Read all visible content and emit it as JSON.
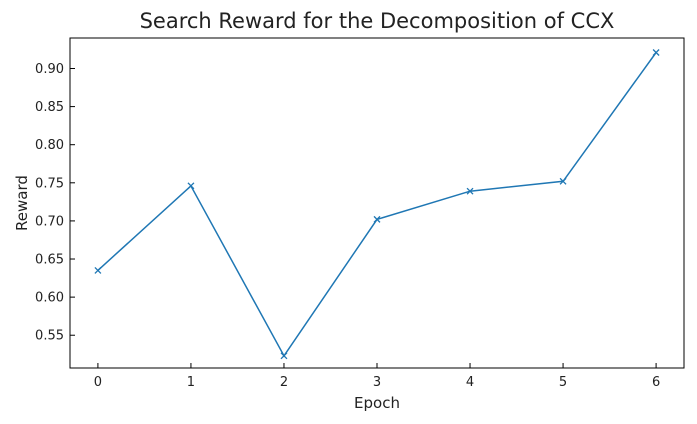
{
  "chart_data": {
    "type": "line",
    "title": "Search Reward for the Decomposition of CCX",
    "xlabel": "Epoch",
    "ylabel": "Reward",
    "x": [
      0,
      1,
      2,
      3,
      4,
      5,
      6
    ],
    "series": [
      {
        "values": [
          0.635,
          0.746,
          0.523,
          0.702,
          0.739,
          0.752,
          0.921
        ],
        "marker": "x",
        "color": "#1f77b4"
      }
    ],
    "xlim": [
      -0.3,
      6.3
    ],
    "ylim": [
      0.507,
      0.94
    ],
    "xticks": [
      0,
      1,
      2,
      3,
      4,
      5,
      6
    ],
    "yticks": [
      0.55,
      0.6,
      0.65,
      0.7,
      0.75,
      0.8,
      0.85,
      0.9
    ],
    "xtick_labels": [
      "0",
      "1",
      "2",
      "3",
      "4",
      "5",
      "6"
    ],
    "ytick_labels": [
      "0.55",
      "0.60",
      "0.65",
      "0.70",
      "0.75",
      "0.80",
      "0.85",
      "0.90"
    ],
    "grid": false,
    "legend": "none"
  }
}
